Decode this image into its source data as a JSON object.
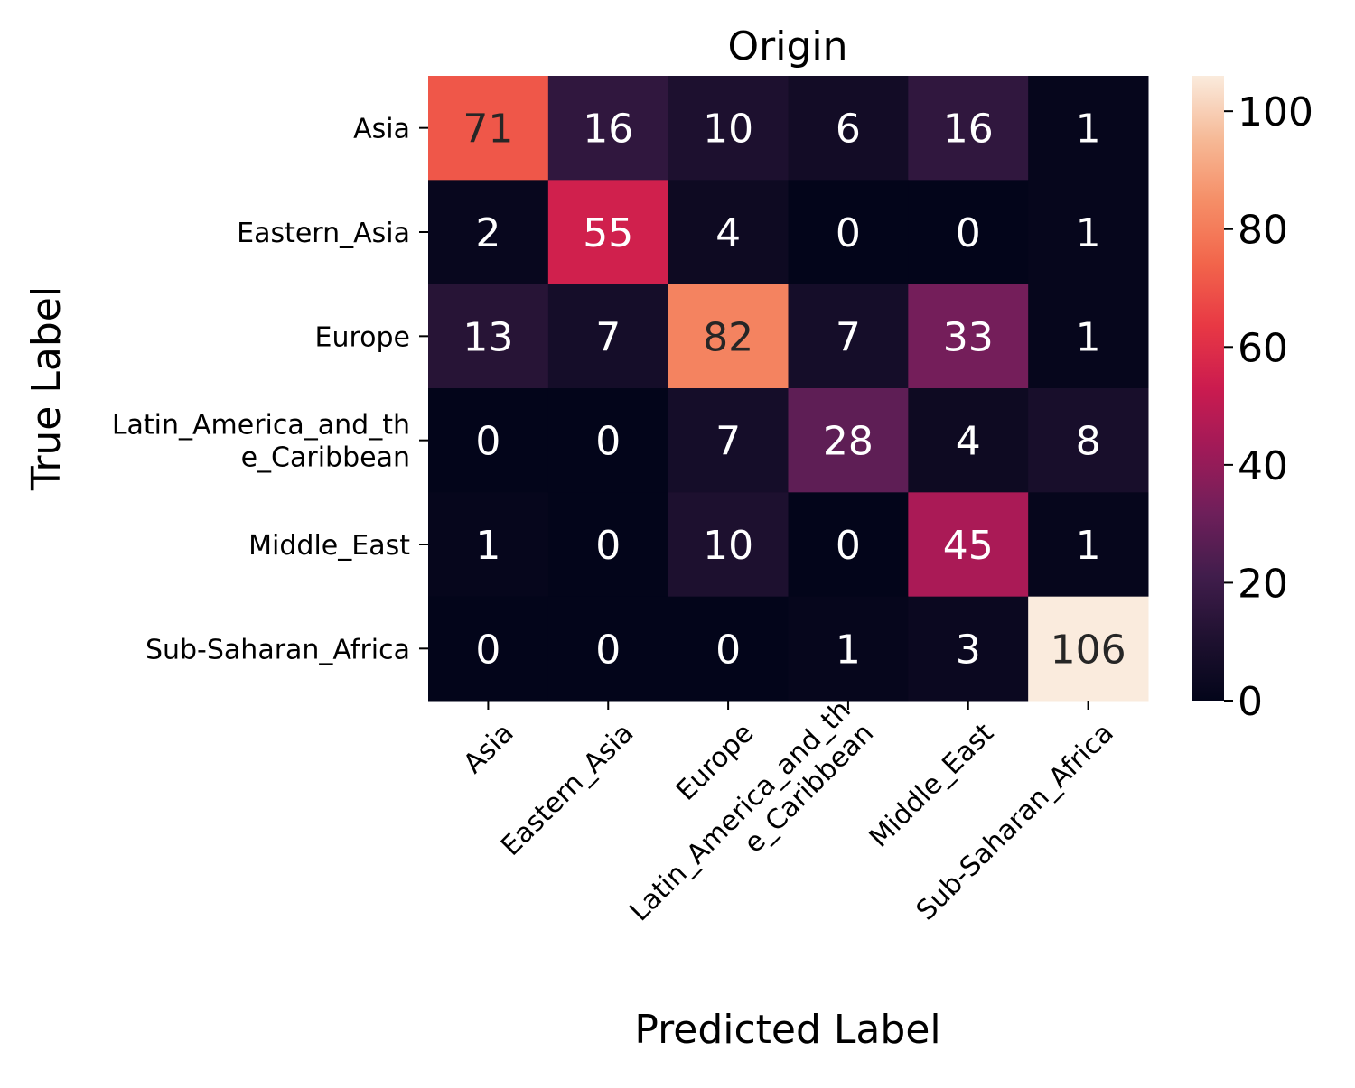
{
  "chart_data": {
    "type": "heatmap",
    "title": "Origin",
    "xlabel": "Predicted Label",
    "ylabel": "True Label",
    "x_categories": [
      "Asia",
      "Eastern_Asia",
      "Europe",
      "Latin_America_and_th\ne_Caribbean",
      "Middle_East",
      "Sub-Saharan_Africa"
    ],
    "y_categories": [
      "Asia",
      "Eastern_Asia",
      "Europe",
      "Latin_America_and_th\ne_Caribbean",
      "Middle_East",
      "Sub-Saharan_Africa"
    ],
    "values": [
      [
        71,
        16,
        10,
        6,
        16,
        1
      ],
      [
        2,
        55,
        4,
        0,
        0,
        1
      ],
      [
        13,
        7,
        82,
        7,
        33,
        1
      ],
      [
        0,
        0,
        7,
        28,
        4,
        8
      ],
      [
        1,
        0,
        10,
        0,
        45,
        1
      ],
      [
        0,
        0,
        0,
        1,
        3,
        106
      ]
    ],
    "colorbar": {
      "colormap": "rocket",
      "vmin": 0,
      "vmax": 106,
      "ticks": [
        0,
        20,
        40,
        60,
        80,
        100
      ]
    },
    "annotations": "cell counts"
  }
}
